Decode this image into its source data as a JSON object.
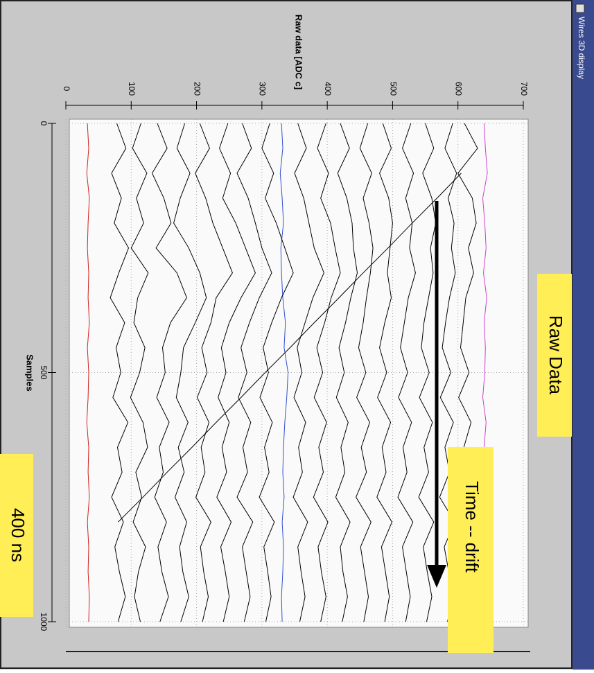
{
  "window": {
    "title": "Wires 3D display"
  },
  "chart_data": {
    "type": "line",
    "y_label": "Raw data [ADC c]",
    "x_label": "Samples",
    "xlim": [
      0,
      1000
    ],
    "xticks": [
      0,
      500,
      1000
    ],
    "ylim": [
      0,
      700
    ],
    "yticks": [
      0,
      100,
      200,
      300,
      400,
      500,
      600,
      700
    ],
    "grid": true,
    "x": [
      0,
      50,
      100,
      150,
      200,
      250,
      300,
      350,
      400,
      450,
      500,
      550,
      600,
      650,
      700,
      750,
      800,
      850,
      900,
      950,
      1000
    ],
    "series": [
      {
        "color": "#d02020",
        "values": [
          33,
          35,
          32,
          36,
          34,
          33,
          35,
          34,
          36,
          33,
          35,
          34,
          32,
          35,
          34,
          36,
          33,
          35,
          34,
          36,
          35
        ]
      },
      {
        "color": "#3050d0",
        "values": [
          330,
          332,
          328,
          331,
          333,
          329,
          330,
          332,
          336,
          334,
          340,
          338,
          335,
          333,
          332,
          334,
          331,
          333,
          332,
          330,
          331
        ]
      },
      {
        "color": "#d040d0",
        "values": [
          640,
          642,
          645,
          638,
          641,
          643,
          639,
          644,
          640,
          642,
          641,
          638,
          643,
          640,
          642,
          639,
          641,
          640,
          642,
          639,
          641
        ]
      },
      {
        "color": "#000000",
        "values": [
          78,
          92,
          70,
          85,
          74,
          96,
          81,
          68,
          90,
          77,
          84,
          72,
          95,
          79,
          86,
          70,
          88,
          75,
          82,
          91,
          80
        ]
      },
      {
        "color": "#000000",
        "values": [
          115,
          102,
          124,
          108,
          119,
          100,
          126,
          110,
          104,
          121,
          113,
          99,
          118,
          125,
          107,
          116,
          103,
          122,
          111,
          105,
          114
        ]
      },
      {
        "color": "#000000",
        "values": [
          140,
          155,
          132,
          150,
          161,
          138,
          170,
          185,
          160,
          148,
          152,
          139,
          158,
          143,
          149,
          136,
          154,
          141,
          147,
          157,
          144
        ]
      },
      {
        "color": "#000000",
        "values": [
          182,
          170,
          190,
          175,
          165,
          188,
          205,
          215,
          198,
          180,
          176,
          169,
          187,
          172,
          181,
          167,
          185,
          174,
          179,
          188,
          176
        ]
      },
      {
        "color": "#000000",
        "values": [
          205,
          220,
          198,
          214,
          225,
          240,
          255,
          230,
          222,
          208,
          216,
          201,
          219,
          207,
          213,
          199,
          222,
          206,
          211,
          218,
          209
        ]
      },
      {
        "color": "#000000",
        "values": [
          248,
          235,
          252,
          240,
          260,
          275,
          290,
          268,
          250,
          238,
          245,
          233,
          250,
          239,
          246,
          231,
          253,
          237,
          244,
          250,
          241
        ]
      },
      {
        "color": "#000000",
        "values": [
          270,
          284,
          262,
          279,
          290,
          300,
          315,
          296,
          281,
          268,
          277,
          264,
          283,
          271,
          278,
          262,
          286,
          270,
          276,
          282,
          273
        ]
      },
      {
        "color": "#000000",
        "values": [
          312,
          300,
          318,
          305,
          322,
          335,
          348,
          330,
          315,
          302,
          310,
          297,
          316,
          304,
          311,
          296,
          319,
          303,
          309,
          314,
          306
        ]
      },
      {
        "color": "#000000",
        "values": [
          355,
          368,
          350,
          364,
          372,
          380,
          395,
          378,
          366,
          354,
          361,
          349,
          367,
          356,
          362,
          348,
          370,
          355,
          360,
          366,
          358
        ]
      },
      {
        "color": "#000000",
        "values": [
          398,
          385,
          402,
          390,
          405,
          412,
          420,
          406,
          396,
          384,
          393,
          380,
          399,
          387,
          394,
          379,
          401,
          386,
          391,
          398,
          390
        ]
      },
      {
        "color": "#000000",
        "values": [
          420,
          434,
          416,
          430,
          438,
          440,
          446,
          436,
          428,
          418,
          426,
          414,
          432,
          421,
          427,
          413,
          435,
          420,
          424,
          431,
          423
        ]
      },
      {
        "color": "#000000",
        "values": [
          462,
          450,
          468,
          455,
          464,
          470,
          466,
          460,
          455,
          448,
          459,
          445,
          465,
          452,
          460,
          444,
          467,
          451,
          457,
          463,
          456
        ]
      },
      {
        "color": "#000000",
        "values": [
          485,
          498,
          480,
          494,
          500,
          496,
          492,
          498,
          488,
          480,
          491,
          477,
          497,
          484,
          490,
          476,
          499,
          483,
          489,
          495,
          488
        ]
      },
      {
        "color": "#000000",
        "values": [
          528,
          515,
          532,
          520,
          530,
          526,
          535,
          524,
          518,
          512,
          523,
          509,
          529,
          516,
          522,
          508,
          531,
          515,
          521,
          527,
          520
        ]
      },
      {
        "color": "#000000",
        "values": [
          550,
          563,
          546,
          560,
          566,
          558,
          562,
          555,
          548,
          544,
          556,
          541,
          561,
          548,
          555,
          540,
          563,
          547,
          553,
          560,
          552
        ]
      },
      {
        "color": "#000000",
        "values": [
          592,
          580,
          598,
          585,
          594,
          590,
          596,
          587,
          581,
          576,
          589,
          573,
          593,
          580,
          587,
          572,
          595,
          579,
          586,
          592,
          584
        ]
      },
      {
        "color": "#000000",
        "values": [
          610,
          630,
          600,
          622,
          628,
          616,
          624,
          612,
          608,
          604,
          617,
          601,
          620,
          609,
          615,
          600,
          622,
          607,
          613,
          619,
          611
        ]
      },
      {
        "color": "#000000",
        "values": [
          null,
          null,
          605,
          568,
          530,
          493,
          455,
          418,
          380,
          343,
          305,
          268,
          230,
          193,
          155,
          118,
          80,
          null,
          null,
          null,
          null
        ]
      }
    ]
  },
  "annotations": {
    "raw_data": "Raw Data",
    "drift": "Time -- drift",
    "time_scale": "400 ns"
  }
}
